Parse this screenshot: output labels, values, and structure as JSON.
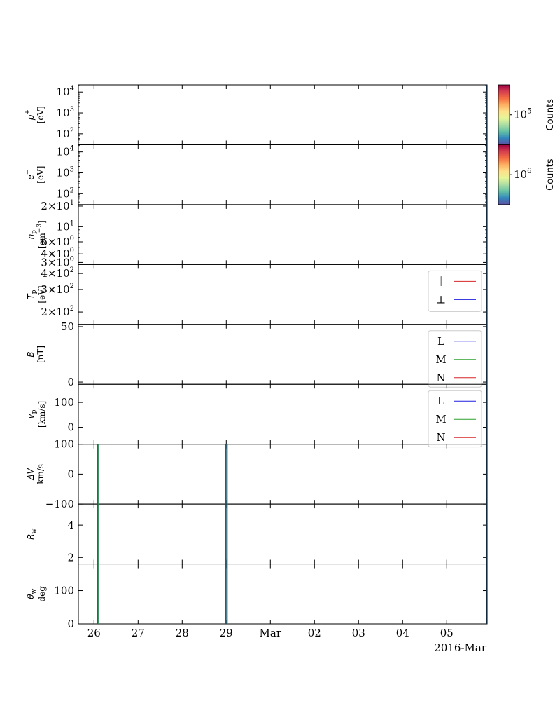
{
  "chart_data": {
    "type": "line",
    "date_label": "2016-Mar",
    "x_ticks": [
      "26",
      "27",
      "28",
      "29",
      "Mar",
      "02",
      "03",
      "04",
      "05"
    ],
    "x_range": [
      "2016-02-25T15:30",
      "2016-03-05T22:00"
    ],
    "colorbars": [
      {
        "label": "Counts",
        "tick": "10",
        "tick_exp": "5",
        "colormap": [
          "#5e4fa2",
          "#3288bd",
          "#66c2a5",
          "#abdda4",
          "#e6f598",
          "#fee08b",
          "#fdae61",
          "#f46d43",
          "#d53e4f",
          "#9e0142"
        ]
      },
      {
        "label": "Counts",
        "tick": "10",
        "tick_exp": "6",
        "colormap": [
          "#5e4fa2",
          "#3288bd",
          "#66c2a5",
          "#abdda4",
          "#e6f598",
          "#fee08b",
          "#fdae61",
          "#f46d43",
          "#d53e4f",
          "#9e0142"
        ]
      }
    ],
    "panels": [
      {
        "id": "proton",
        "ylabel_line1": "p",
        "ylabel_sup": "+",
        "ylabel_line2": "[eV]",
        "yscale": "log",
        "ylim": [
          30,
          22000
        ],
        "yticks": [
          {
            "value": 100,
            "base": "10",
            "exp": "2"
          },
          {
            "value": 1000,
            "base": "10",
            "exp": "3"
          },
          {
            "value": 10000,
            "base": "10",
            "exp": "4"
          }
        ],
        "series": []
      },
      {
        "id": "electron",
        "ylabel_line1": "e",
        "ylabel_sup": "−",
        "ylabel_line2": "[eV]",
        "yscale": "log",
        "ylim": [
          30,
          22000
        ],
        "yticks": [
          {
            "value": 100,
            "base": "10",
            "exp": "2"
          },
          {
            "value": 1000,
            "base": "10",
            "exp": "3"
          },
          {
            "value": 10000,
            "base": "10",
            "exp": "4"
          }
        ],
        "series": []
      },
      {
        "id": "density",
        "ylabel_line1": "n",
        "ylabel_sub": "p",
        "ylabel_line2": "[cm",
        "ylabel_line2_sup": "−3",
        "ylabel_line2_end": "]",
        "yscale": "log",
        "ylim": [
          2.8,
          21
        ],
        "yticks": [
          {
            "value": 3,
            "base": "3×10",
            "exp": "0"
          },
          {
            "value": 4,
            "base": "4×10",
            "exp": "0"
          },
          {
            "value": 6,
            "base": "6×10",
            "exp": "0"
          },
          {
            "value": 10,
            "base": "10",
            "exp": "1"
          },
          {
            "value": 20,
            "base": "2×10",
            "exp": "1"
          }
        ],
        "series": []
      },
      {
        "id": "temperature",
        "ylabel_line1": "T",
        "ylabel_sub": "p",
        "ylabel_line2": "[eV]",
        "yscale": "log",
        "ylim": [
          160,
          470
        ],
        "yticks": [
          {
            "value": 200,
            "base": "2×10",
            "exp": "2"
          },
          {
            "value": 300,
            "base": "3×10",
            "exp": "2"
          },
          {
            "value": 400,
            "base": "4×10",
            "exp": "2"
          }
        ],
        "legend": [
          {
            "name": "∥",
            "color": "#d62728"
          },
          {
            "name": "⊥",
            "color": "#1f1fe0"
          }
        ],
        "series": []
      },
      {
        "id": "bfield",
        "ylabel_line1": "B",
        "ylabel_line2": "[nT]",
        "yscale": "linear",
        "ylim": [
          -2,
          52
        ],
        "yticks": [
          {
            "value": 0,
            "label": "0"
          },
          {
            "value": 50,
            "label": "50"
          }
        ],
        "legend": [
          {
            "name": "L",
            "color": "#1f1fe0"
          },
          {
            "name": "M",
            "color": "#2ca02c"
          },
          {
            "name": "N",
            "color": "#d62728"
          }
        ],
        "series": []
      },
      {
        "id": "velocity",
        "ylabel_line1": "v",
        "ylabel_sub": "p",
        "ylabel_line2": "[km/s]",
        "yscale": "linear",
        "ylim": [
          -68,
          173
        ],
        "yticks": [
          {
            "value": 0,
            "label": "0"
          },
          {
            "value": 100,
            "label": "100"
          }
        ],
        "legend": [
          {
            "name": "L",
            "color": "#1f1fe0"
          },
          {
            "name": "M",
            "color": "#2ca02c"
          },
          {
            "name": "N",
            "color": "#d62728"
          }
        ],
        "series": []
      },
      {
        "id": "deltav",
        "ylabel_line1": "ΔV",
        "ylabel_line2": "km/s",
        "yscale": "linear",
        "ylim": [
          -100,
          100
        ],
        "yticks": [
          {
            "value": -100,
            "label": "−100"
          },
          {
            "value": 0,
            "label": "0"
          },
          {
            "value": 100,
            "label": "100"
          }
        ],
        "series": []
      },
      {
        "id": "rw",
        "ylabel_line1": "R",
        "ylabel_sub": "w",
        "yscale": "linear",
        "ylim": [
          1.6,
          5.3
        ],
        "yticks": [
          {
            "value": 2,
            "label": "2"
          },
          {
            "value": 4,
            "label": "4"
          }
        ],
        "series": []
      },
      {
        "id": "thetaw",
        "ylabel_line1": "θ",
        "ylabel_sub": "w",
        "ylabel_line2": "deg",
        "yscale": "linear",
        "ylim": [
          0,
          180
        ],
        "yticks": [
          {
            "value": 0,
            "label": "0"
          },
          {
            "value": 100,
            "label": "100"
          }
        ],
        "series": []
      }
    ],
    "event_markers": [
      {
        "x": "2016-02-26T01:50",
        "color": "#1f4e79"
      },
      {
        "x": "2016-02-26T02:30",
        "color": "#2e8b57"
      },
      {
        "x": "2016-02-28T23:50",
        "color": "#1f4e79"
      },
      {
        "x": "2016-02-29T00:30",
        "color": "#2e8b57"
      }
    ],
    "marker_panels": [
      "deltav",
      "rw",
      "thetaw"
    ]
  }
}
